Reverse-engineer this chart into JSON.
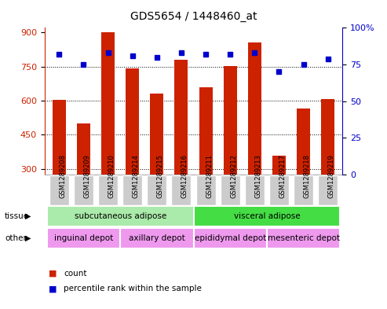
{
  "title": "GDS5654 / 1448460_at",
  "samples": [
    "GSM1289208",
    "GSM1289209",
    "GSM1289210",
    "GSM1289214",
    "GSM1289215",
    "GSM1289216",
    "GSM1289211",
    "GSM1289212",
    "GSM1289213",
    "GSM1289217",
    "GSM1289218",
    "GSM1289219"
  ],
  "counts": [
    605,
    500,
    900,
    740,
    630,
    780,
    660,
    752,
    855,
    358,
    565,
    607
  ],
  "percentile_ranks": [
    82,
    75,
    83,
    81,
    80,
    83,
    82,
    82,
    83,
    70,
    75,
    79
  ],
  "ylim_left": [
    275,
    920
  ],
  "yticks_left": [
    300,
    450,
    600,
    750,
    900
  ],
  "ylim_right": [
    0,
    100
  ],
  "yticks_right": [
    0,
    25,
    50,
    75,
    100
  ],
  "bar_color": "#cc2200",
  "dot_color": "#0000cc",
  "tissue_labels": [
    {
      "text": "subcutaneous adipose",
      "start": 0,
      "end": 6,
      "color": "#aaeaaa"
    },
    {
      "text": "visceral adipose",
      "start": 6,
      "end": 12,
      "color": "#44dd44"
    }
  ],
  "other_labels": [
    {
      "text": "inguinal depot",
      "start": 0,
      "end": 3,
      "color": "#ee99ee"
    },
    {
      "text": "axillary depot",
      "start": 3,
      "end": 6,
      "color": "#ee99ee"
    },
    {
      "text": "epididymal depot",
      "start": 6,
      "end": 9,
      "color": "#ee99ee"
    },
    {
      "text": "mesenteric depot",
      "start": 9,
      "end": 12,
      "color": "#ee99ee"
    }
  ],
  "legend_items": [
    {
      "label": "count",
      "color": "#cc2200"
    },
    {
      "label": "percentile rank within the sample",
      "color": "#0000cc"
    }
  ],
  "tissue_row_label": "tissue",
  "other_row_label": "other",
  "bg_color": "#ffffff",
  "tick_label_bg": "#cccccc",
  "bar_width": 0.55
}
